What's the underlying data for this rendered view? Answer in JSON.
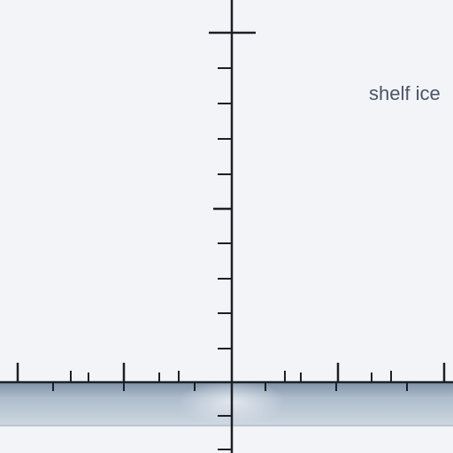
{
  "labels": {
    "shelf_ice": "shelf ice"
  },
  "colors": {
    "background": "#f3f4f7",
    "axis": "#1c1f24",
    "ice_top": "#8a9bb0",
    "ice_mid": "#b9c5d2",
    "ice_bottom": "#d4dce5",
    "label": "#4a5466"
  }
}
